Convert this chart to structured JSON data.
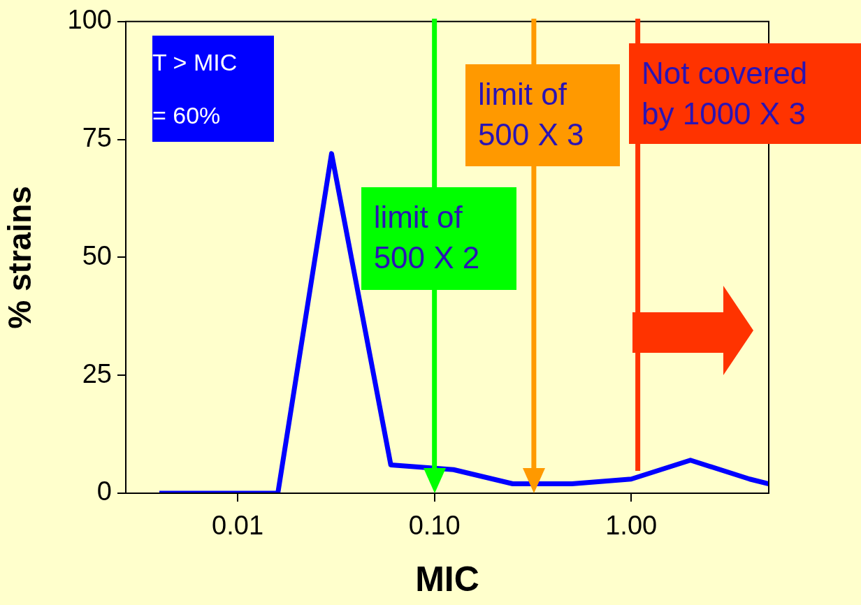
{
  "chart_data": {
    "type": "line",
    "xlabel": "MIC",
    "ylabel": "% strains",
    "x": [
      0.004,
      0.008,
      0.016,
      0.03,
      0.06,
      0.125,
      0.25,
      0.5,
      1,
      2,
      4,
      5
    ],
    "series": [
      {
        "color": "#0000ff",
        "values": [
          0,
          0,
          0,
          72,
          6,
          5,
          2,
          2,
          3,
          7,
          3,
          2
        ]
      }
    ],
    "log": "x",
    "xlim": [
      0.0027,
      5
    ],
    "xticks": [
      {
        "value": 0.01,
        "label": "0.01"
      },
      {
        "value": 0.1,
        "label": "0.10"
      },
      {
        "value": 1,
        "label": "1.00"
      }
    ],
    "ylim": [
      0,
      100
    ],
    "yticks": [
      0,
      25,
      50,
      75,
      100
    ],
    "grid": false,
    "legend": false,
    "marker": "none",
    "line_style": "solid",
    "ref_lines": [
      {
        "axis": "x",
        "value": 0.1,
        "label": "limit of 500 X 2",
        "color": "#00ff00"
      },
      {
        "axis": "x",
        "value": 0.32,
        "label": "limit of 500 X 3",
        "color": "#ff9900"
      },
      {
        "axis": "x",
        "value": 1.08,
        "label": "Not covered by 1000 X 3",
        "color": "#ff3300"
      }
    ],
    "annotations": [
      "T > MIC = 60%"
    ]
  }
}
